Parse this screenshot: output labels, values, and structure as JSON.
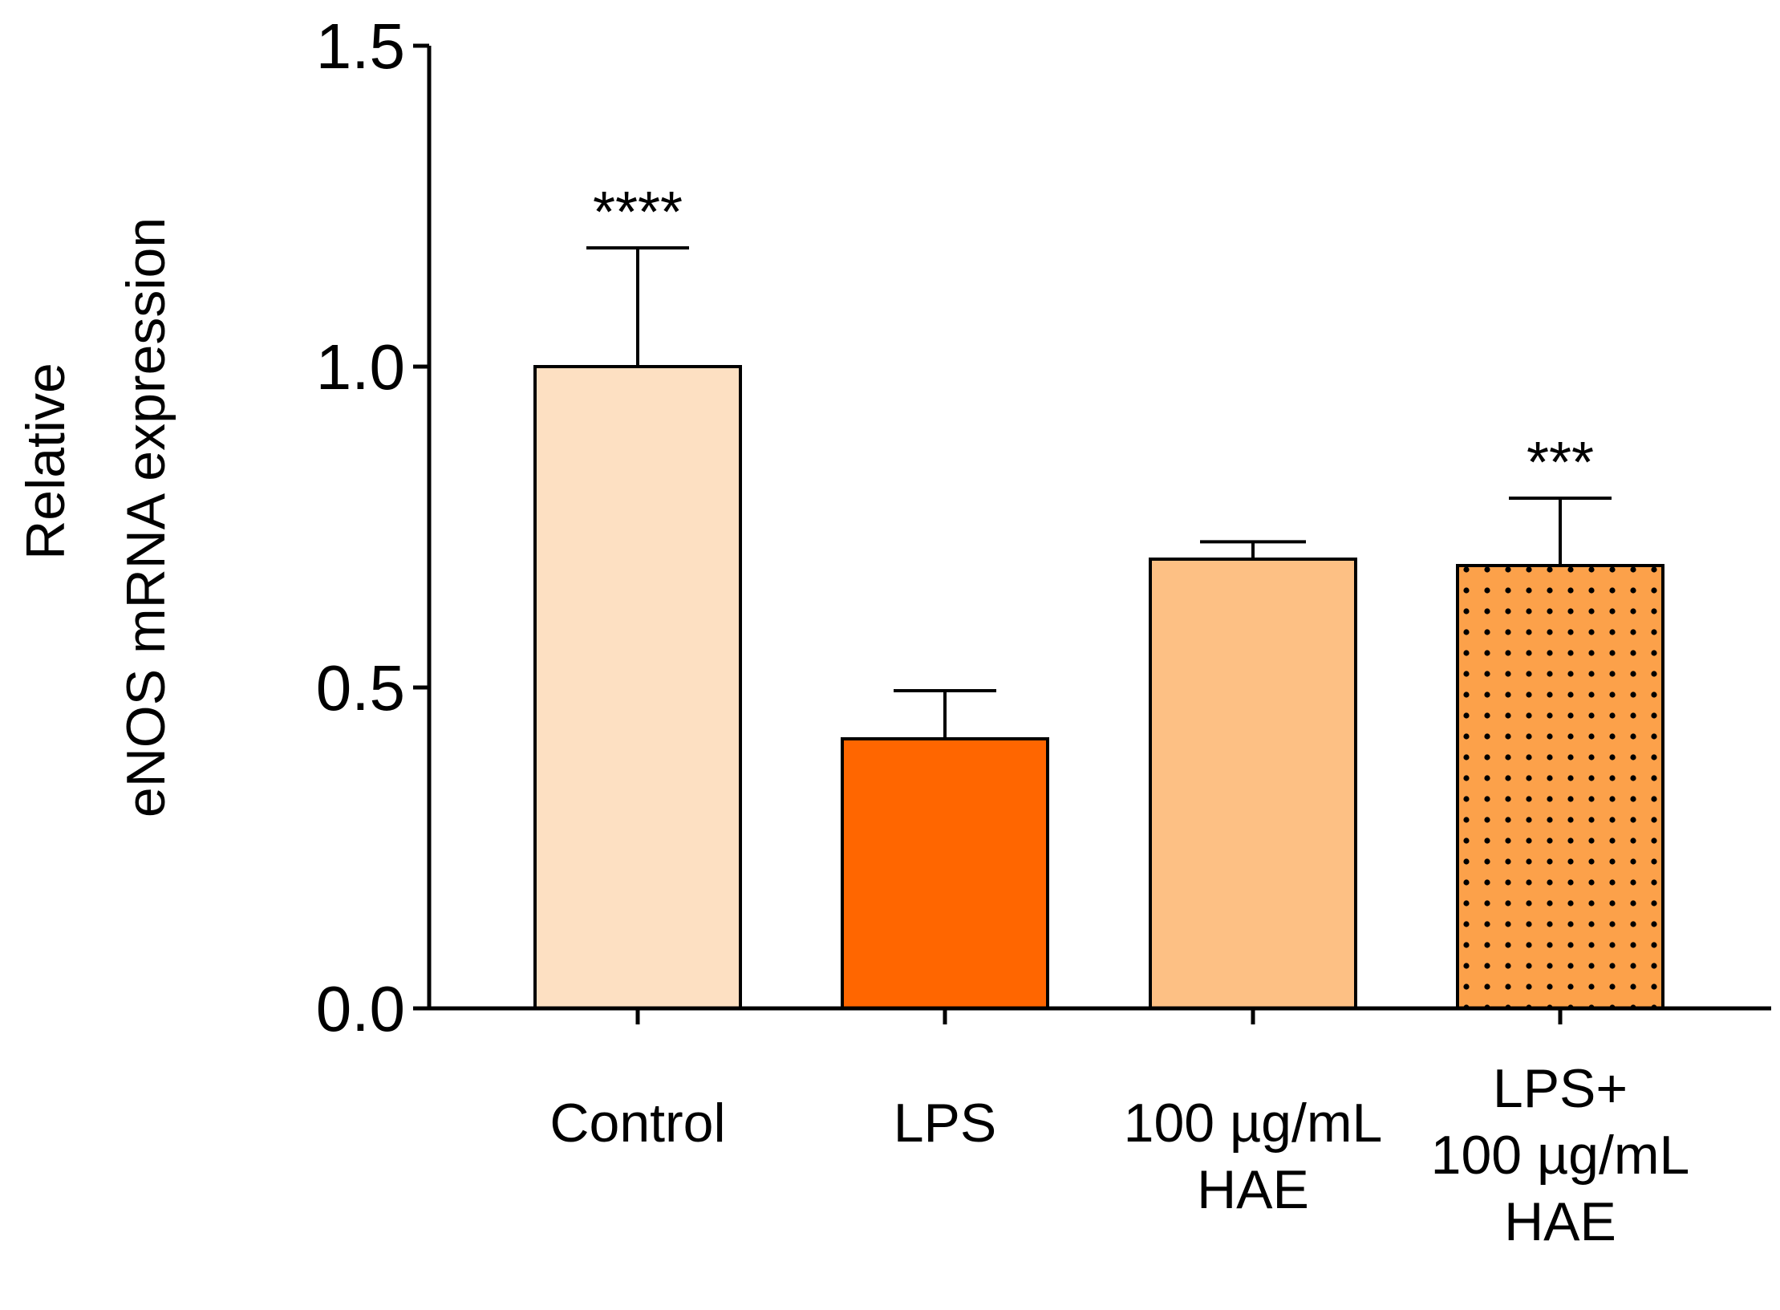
{
  "chart_data": {
    "type": "bar",
    "title": "",
    "xlabel": "",
    "ylabel_lines": [
      "Relative",
      "eNOS mRNA expression"
    ],
    "ylim": [
      0,
      1.5
    ],
    "yticks": [
      "0.0",
      "0.5",
      "1.0",
      "1.5"
    ],
    "ytick_values": [
      0,
      0.5,
      1.0,
      1.5
    ],
    "categories": [
      [
        "Control"
      ],
      [
        "LPS"
      ],
      [
        "100 µg/mL",
        "HAE"
      ],
      [
        "LPS+",
        "100 µg/mL",
        "HAE"
      ]
    ],
    "values": [
      1.0,
      0.42,
      0.7,
      0.69
    ],
    "errors": [
      0.185,
      0.075,
      0.027,
      0.105
    ],
    "significance": [
      "****",
      "",
      "",
      "***"
    ],
    "colors": [
      "#fde0c2",
      "#ff6600",
      "#fdc084",
      "#fca14a"
    ],
    "patterns": [
      "none",
      "none",
      "none",
      "dots"
    ]
  }
}
